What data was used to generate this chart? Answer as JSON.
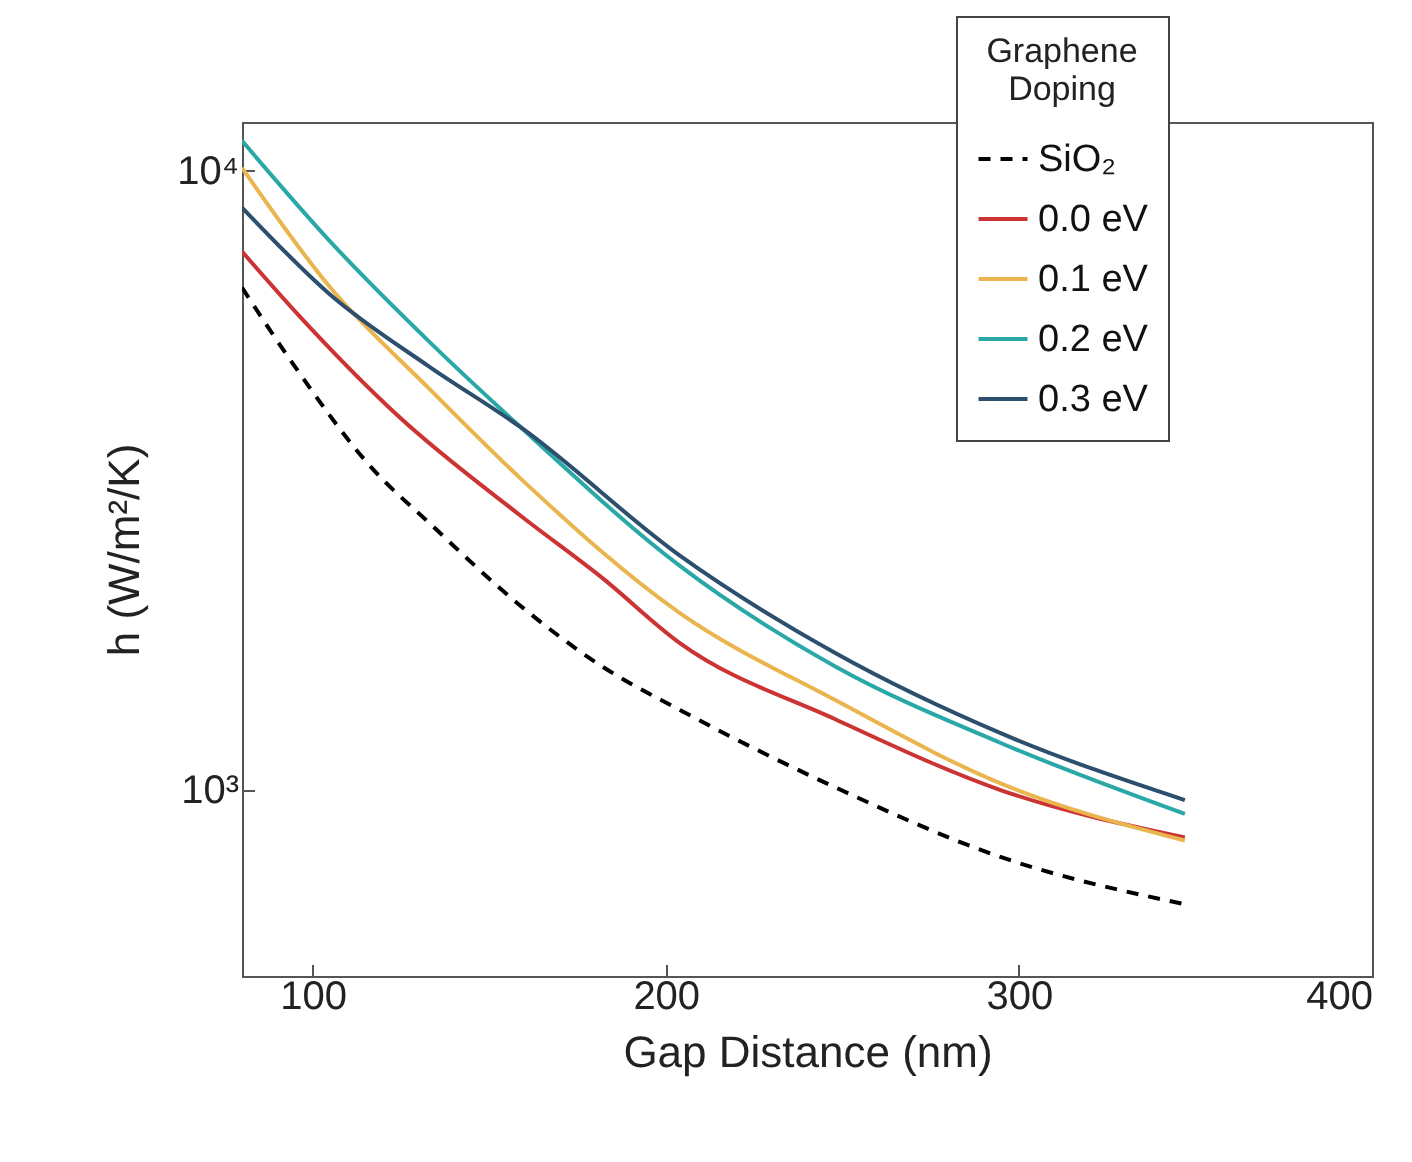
{
  "chart_data": {
    "type": "line",
    "xlabel": "Gap Distance (nm)",
    "ylabel": "h (W/m²/K)",
    "legend_title": "Graphene Doping",
    "log": "y",
    "grid": false,
    "legend": "top right",
    "xlim": [
      80,
      400
    ],
    "xticks": [
      100,
      200,
      300,
      400
    ],
    "ylim": [
      500,
      12000
    ],
    "yticks": [
      {
        "value": 1000,
        "label": "10³"
      },
      {
        "value": 10000,
        "label": "10⁴"
      }
    ],
    "series": [
      {
        "name": "SiO₂",
        "color": "#000000",
        "line_style": "dashed",
        "x": [
          80,
          94,
          117,
          133,
          159,
          182,
          204,
          248,
          295,
          347
        ],
        "values": [
          6480,
          4920,
          3300,
          2700,
          1980,
          1582,
          1346,
          1009,
          778,
          653
        ]
      },
      {
        "name": "0.0 eV",
        "color": "#cc3333",
        "line_style": "solid",
        "x": [
          80,
          96,
          124,
          159,
          182,
          204,
          248,
          295,
          347
        ],
        "values": [
          7410,
          5850,
          4030,
          2770,
          2200,
          1726,
          1300,
          998,
          837
        ]
      },
      {
        "name": "0.1 eV",
        "color": "#eab54e",
        "line_style": "solid",
        "x": [
          80,
          105,
          133,
          159,
          204,
          248,
          295,
          347
        ],
        "values": [
          10120,
          6480,
          4450,
          3180,
          1930,
          1396,
          1023,
          828
        ]
      },
      {
        "name": "0.2 eV",
        "color": "#2aa8a8",
        "line_style": "solid",
        "x": [
          80,
          105,
          133,
          159,
          204,
          248,
          295,
          347
        ],
        "values": [
          11190,
          7690,
          5300,
          3850,
          2300,
          1582,
          1189,
          914
        ]
      },
      {
        "name": "0.3 eV",
        "color": "#2c4f6e",
        "line_style": "solid",
        "x": [
          80,
          105,
          133,
          159,
          204,
          248,
          295,
          347
        ],
        "values": [
          8730,
          6310,
          4830,
          3850,
          2390,
          1663,
          1233,
          962
        ]
      }
    ]
  }
}
